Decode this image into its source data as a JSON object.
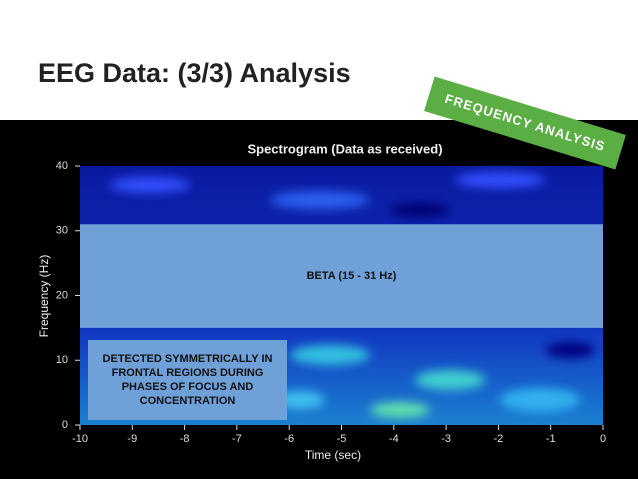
{
  "slide": {
    "title": "EEG Data: (3/3) Analysis",
    "banner": "FREQUENCY ANALYSIS"
  },
  "figure": {
    "title": "Spectrogram (Data as received)",
    "xlabel": "Time (sec)",
    "ylabel": "Frequency (Hz)",
    "xlim": [
      -10,
      0
    ],
    "ylim": [
      0,
      40
    ],
    "xticks": [
      -10,
      -9,
      -8,
      -7,
      -6,
      -5,
      -4,
      -3,
      -2,
      -1,
      0
    ],
    "yticks": [
      0,
      10,
      20,
      30,
      40
    ]
  },
  "band": {
    "label": "BETA (15 - 31 Hz)",
    "range": [
      15,
      31
    ],
    "color": "#6fa1d8"
  },
  "note": {
    "text": "DETECTED SYMMETRICALLY IN FRONTAL REGIONS DURING PHASES OF FOCUS AND CONCENTRATION"
  }
}
